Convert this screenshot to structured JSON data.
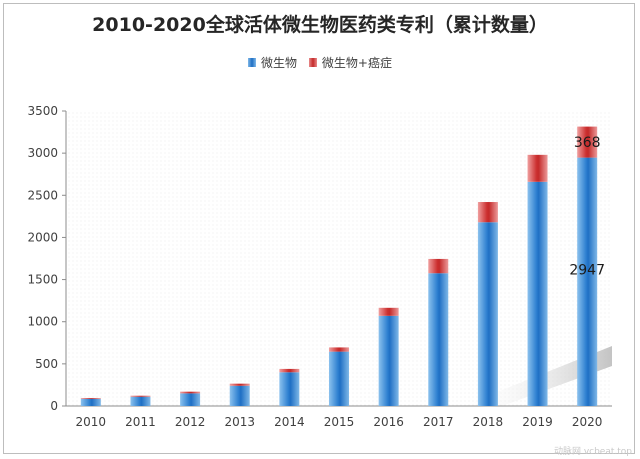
{
  "chart_data": {
    "type": "bar",
    "title": "2010-2020全球活体微生物医药类专利（累计数量）",
    "categories": [
      "2010",
      "2011",
      "2012",
      "2013",
      "2014",
      "2015",
      "2016",
      "2017",
      "2018",
      "2019",
      "2020"
    ],
    "series": [
      {
        "name": "微生物",
        "values": [
          85,
          110,
          150,
          240,
          400,
          645,
          1070,
          1575,
          2180,
          2660,
          2947
        ],
        "color": "#1f6fc4"
      },
      {
        "name": "微生物+癌症",
        "values": [
          10,
          12,
          20,
          25,
          40,
          50,
          95,
          170,
          240,
          320,
          368
        ],
        "color": "#c42a2a"
      }
    ],
    "stacked": true,
    "ylim": [
      0,
      3500
    ],
    "yticks": [
      0,
      500,
      1000,
      1500,
      2000,
      2500,
      3000,
      3500
    ],
    "data_labels": [
      {
        "category": "2020",
        "series": "微生物",
        "text": "2947"
      },
      {
        "category": "2020",
        "series": "微生物+癌症",
        "text": "368"
      }
    ],
    "legend_position": "top-right",
    "grid": false
  },
  "watermark": "动脉网 vcbeat.top"
}
